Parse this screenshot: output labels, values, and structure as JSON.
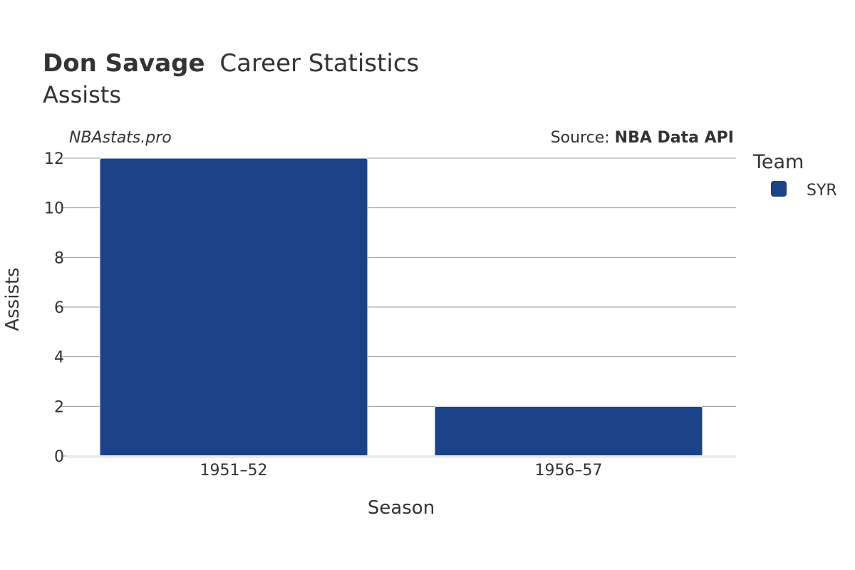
{
  "title": {
    "player_name": "Don Savage",
    "rest": "Career Statistics",
    "subtitle": "Assists"
  },
  "watermark": "NBAstats.pro",
  "source": {
    "prefix": "Source: ",
    "name": "NBA Data API"
  },
  "legend": {
    "title": "Team",
    "items": [
      {
        "label": "SYR",
        "color": "#1c4287"
      }
    ]
  },
  "chart_data": {
    "type": "bar",
    "categories": [
      "1951–52",
      "1956–57"
    ],
    "series": [
      {
        "name": "SYR",
        "values": [
          12,
          2
        ],
        "color": "#1c4287"
      }
    ],
    "xlabel": "Season",
    "ylabel": "Assists",
    "ylim": [
      0,
      12
    ],
    "yticks": [
      0,
      2,
      4,
      6,
      8,
      10,
      12
    ],
    "grid": true,
    "legend_position": "right"
  }
}
